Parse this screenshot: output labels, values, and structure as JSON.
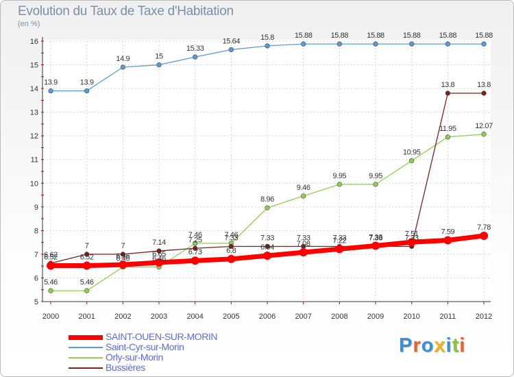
{
  "title": "Evolution du Taux de Taxe d'Habitation",
  "unit": "(en %)",
  "brand": {
    "text": "Proxiti",
    "letter_colors": [
      "#3a8fd8",
      "#e8622c",
      "#3a8fd8",
      "#f2b21f",
      "#3a8fd8",
      "#8bc43f",
      "#e8622c"
    ]
  },
  "chart_data": {
    "type": "line",
    "x": [
      "2000",
      "2001",
      "2002",
      "2003",
      "2004",
      "2005",
      "2006",
      "2007",
      "2008",
      "2009",
      "2010",
      "2011",
      "2012"
    ],
    "ylim": [
      5,
      16
    ],
    "yticks": [
      "5",
      "6",
      "7",
      "8",
      "9",
      "10",
      "11",
      "12",
      "13",
      "14",
      "15",
      "16"
    ],
    "grid": true,
    "legend_position": "bottom-left",
    "series": [
      {
        "name": "SAINT-OUEN-SUR-MORIN",
        "color": "#ff0000",
        "values": [
          6.52,
          6.52,
          6.56,
          6.65,
          6.73,
          6.8,
          6.94,
          7.08,
          7.22,
          7.36,
          7.51,
          7.59,
          7.78
        ],
        "labels": [
          "6.52",
          "6.52",
          "6.56",
          "6.65",
          "6.73",
          "6.8",
          "6.94",
          "7.08",
          "7.22",
          "7.36",
          "7.51",
          "7.59",
          "7.78"
        ]
      },
      {
        "name": "Saint-Cyr-sur-Morin",
        "color": "#5b9bd5",
        "values": [
          13.9,
          13.9,
          14.9,
          15,
          15.33,
          15.64,
          15.8,
          15.88,
          15.88,
          15.88,
          15.88,
          15.88,
          15.88
        ],
        "labels": [
          "13.9",
          "13.9",
          "14.9",
          "15",
          "15.33",
          "15.64",
          "15.8",
          "15.88",
          "15.88",
          "15.88",
          "15.88",
          "15.88",
          "15.88"
        ]
      },
      {
        "name": "Orly-sur-Morin",
        "color": "#8fd14f",
        "values": [
          5.46,
          5.46,
          6.46,
          6.46,
          7.46,
          7.46,
          8.96,
          9.46,
          9.95,
          9.95,
          10.95,
          11.95,
          12.07
        ],
        "labels": [
          "5.46",
          "5.46",
          "6.46",
          "6.46",
          "7.46",
          "7.46",
          "8.96",
          "9.46",
          "9.95",
          "9.95",
          "10.95",
          "11.95",
          "12.07"
        ]
      },
      {
        "name": "Bussières",
        "color": "#7a1f1f",
        "values": [
          6.62,
          7,
          7,
          7.14,
          7.25,
          7.33,
          7.33,
          7.33,
          7.33,
          7.33,
          7.33,
          13.8,
          13.8
        ],
        "labels": [
          "6.62",
          "7",
          "7",
          "7.14",
          "7.25",
          "7.33",
          "7.33",
          "7.33",
          "7.33",
          "7.33",
          "7.33",
          "13.8",
          "13.8"
        ]
      }
    ]
  }
}
